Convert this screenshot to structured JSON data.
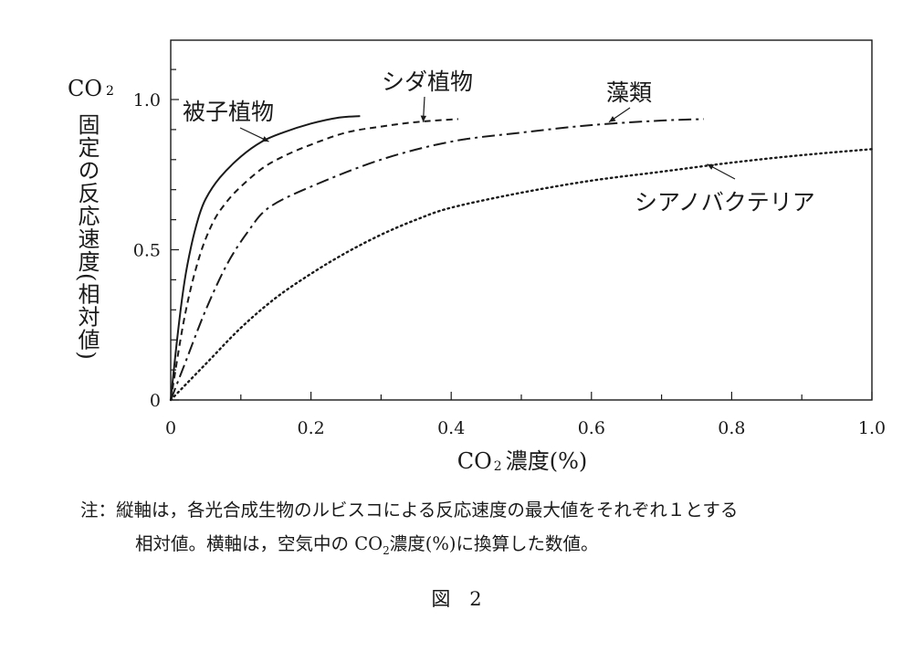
{
  "chart_data": {
    "type": "line",
    "ylabel": {
      "prefix": "CO",
      "sub": "2",
      "text": "固定の反応速度(相対値)"
    },
    "xlabel": {
      "prefix": "CO",
      "sub": "2",
      "text": "濃度(%)"
    },
    "xlim": [
      0,
      1.0
    ],
    "ylim": [
      0,
      1.2
    ],
    "x_ticks": [
      "0",
      "0.2",
      "0.4",
      "0.6",
      "0.8",
      "1.0"
    ],
    "y_ticks": [
      "0",
      "0.5",
      "1.0"
    ],
    "grid": false,
    "series": [
      {
        "name": "被子植物",
        "style": "solid",
        "x": [
          0,
          0.01,
          0.02,
          0.03,
          0.04,
          0.05,
          0.07,
          0.1,
          0.13,
          0.16,
          0.2,
          0.24,
          0.27
        ],
        "y": [
          0,
          0.22,
          0.4,
          0.52,
          0.61,
          0.67,
          0.74,
          0.81,
          0.86,
          0.89,
          0.92,
          0.94,
          0.945
        ]
      },
      {
        "name": "シダ植物",
        "style": "dashed",
        "x": [
          0,
          0.02,
          0.04,
          0.06,
          0.08,
          0.1,
          0.13,
          0.16,
          0.2,
          0.25,
          0.3,
          0.35,
          0.41
        ],
        "y": [
          0,
          0.28,
          0.47,
          0.59,
          0.66,
          0.71,
          0.77,
          0.81,
          0.85,
          0.89,
          0.91,
          0.925,
          0.935
        ]
      },
      {
        "name": "藻類",
        "style": "dashdot",
        "x": [
          0,
          0.02,
          0.05,
          0.08,
          0.11,
          0.14,
          0.2,
          0.3,
          0.4,
          0.5,
          0.6,
          0.7,
          0.76
        ],
        "y": [
          0,
          0.12,
          0.3,
          0.45,
          0.56,
          0.64,
          0.71,
          0.8,
          0.86,
          0.89,
          0.915,
          0.93,
          0.935
        ]
      },
      {
        "name": "シアノバクテリア",
        "style": "dotted",
        "x": [
          0,
          0.05,
          0.1,
          0.15,
          0.2,
          0.25,
          0.3,
          0.35,
          0.4,
          0.5,
          0.6,
          0.7,
          0.8,
          0.9,
          1.0
        ],
        "y": [
          0,
          0.12,
          0.24,
          0.34,
          0.42,
          0.49,
          0.55,
          0.6,
          0.64,
          0.69,
          0.73,
          0.76,
          0.79,
          0.815,
          0.835
        ]
      }
    ],
    "annotations": [
      {
        "series": "被子植物",
        "text": "被子植物",
        "arrow_at": [
          0.14,
          0.86
        ]
      },
      {
        "series": "シダ植物",
        "text": "シダ植物",
        "arrow_at": [
          0.36,
          0.925
        ]
      },
      {
        "series": "藻類",
        "text": "藻類",
        "arrow_at": [
          0.625,
          0.925
        ]
      },
      {
        "series": "シアノバクテリア",
        "text": "シアノバクテリア",
        "arrow_at": [
          0.765,
          0.785
        ]
      }
    ]
  },
  "note": {
    "line1": "注：縦軸は，各光合成生物のルビスコによる反応速度の最大値をそれぞれ１とする",
    "line2_a": "相対値。横軸は，空気中の CO",
    "line2_sub": "2",
    "line2_b": "濃度(%)に換算した数値。"
  },
  "figure_caption": "図　2"
}
